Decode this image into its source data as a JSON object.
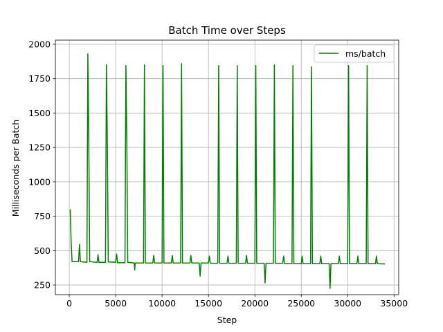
{
  "chart_data": {
    "type": "line",
    "title": "Batch Time over Steps",
    "xlabel": "Step",
    "ylabel": "Milliseconds per Batch",
    "xlim": [
      -1500,
      35500
    ],
    "ylim": [
      180,
      2030
    ],
    "xticks": [
      0,
      5000,
      10000,
      15000,
      20000,
      25000,
      30000,
      35000
    ],
    "yticks": [
      250,
      500,
      750,
      1000,
      1250,
      1500,
      1750,
      2000
    ],
    "grid": true,
    "legend": "top-right",
    "color": "#008000",
    "series": [
      {
        "name": "ms/batch",
        "points": [
          [
            100,
            800
          ],
          [
            200,
            560
          ],
          [
            300,
            420
          ],
          [
            1000,
            420
          ],
          [
            1100,
            545
          ],
          [
            1200,
            420
          ],
          [
            1900,
            415
          ],
          [
            2000,
            1930
          ],
          [
            2100,
            1300
          ],
          [
            2200,
            420
          ],
          [
            3000,
            415
          ],
          [
            3100,
            470
          ],
          [
            3200,
            415
          ],
          [
            3900,
            415
          ],
          [
            4000,
            1850
          ],
          [
            4100,
            1300
          ],
          [
            4200,
            418
          ],
          [
            5000,
            415
          ],
          [
            5100,
            475
          ],
          [
            5200,
            412
          ],
          [
            6000,
            412
          ],
          [
            6100,
            1845
          ],
          [
            6200,
            1300
          ],
          [
            6300,
            415
          ],
          [
            7000,
            410
          ],
          [
            7050,
            360
          ],
          [
            7100,
            410
          ],
          [
            8000,
            410
          ],
          [
            8100,
            1850
          ],
          [
            8200,
            410
          ],
          [
            9000,
            410
          ],
          [
            9100,
            465
          ],
          [
            9200,
            410
          ],
          [
            10000,
            410
          ],
          [
            10100,
            1845
          ],
          [
            10200,
            410
          ],
          [
            11000,
            410
          ],
          [
            11100,
            465
          ],
          [
            11200,
            410
          ],
          [
            12000,
            410
          ],
          [
            12100,
            1860
          ],
          [
            12200,
            410
          ],
          [
            13000,
            410
          ],
          [
            13100,
            465
          ],
          [
            13200,
            410
          ],
          [
            14000,
            410
          ],
          [
            14100,
            315
          ],
          [
            14200,
            410
          ],
          [
            15000,
            410
          ],
          [
            15100,
            460
          ],
          [
            15200,
            408
          ],
          [
            16000,
            408
          ],
          [
            16100,
            1845
          ],
          [
            16200,
            408
          ],
          [
            17000,
            408
          ],
          [
            17100,
            460
          ],
          [
            17200,
            408
          ],
          [
            18000,
            408
          ],
          [
            18100,
            1845
          ],
          [
            18200,
            408
          ],
          [
            19000,
            408
          ],
          [
            19100,
            465
          ],
          [
            19200,
            408
          ],
          [
            20000,
            408
          ],
          [
            20100,
            1845
          ],
          [
            20200,
            408
          ],
          [
            21000,
            408
          ],
          [
            21100,
            265
          ],
          [
            21200,
            408
          ],
          [
            22000,
            408
          ],
          [
            22100,
            1850
          ],
          [
            22200,
            408
          ],
          [
            23000,
            408
          ],
          [
            23100,
            460
          ],
          [
            23200,
            405
          ],
          [
            24000,
            405
          ],
          [
            24100,
            1845
          ],
          [
            24200,
            405
          ],
          [
            25000,
            405
          ],
          [
            25100,
            460
          ],
          [
            25200,
            405
          ],
          [
            26000,
            405
          ],
          [
            26100,
            1835
          ],
          [
            26200,
            405
          ],
          [
            27000,
            405
          ],
          [
            27100,
            460
          ],
          [
            27200,
            405
          ],
          [
            28000,
            405
          ],
          [
            28100,
            225
          ],
          [
            28200,
            405
          ],
          [
            29000,
            405
          ],
          [
            29100,
            460
          ],
          [
            29200,
            405
          ],
          [
            30000,
            405
          ],
          [
            30100,
            1845
          ],
          [
            30200,
            405
          ],
          [
            31000,
            405
          ],
          [
            31100,
            460
          ],
          [
            31200,
            405
          ],
          [
            32000,
            405
          ],
          [
            32100,
            1845
          ],
          [
            32200,
            405
          ],
          [
            33000,
            405
          ],
          [
            33100,
            460
          ],
          [
            33200,
            405
          ],
          [
            34000,
            403
          ]
        ]
      }
    ]
  }
}
